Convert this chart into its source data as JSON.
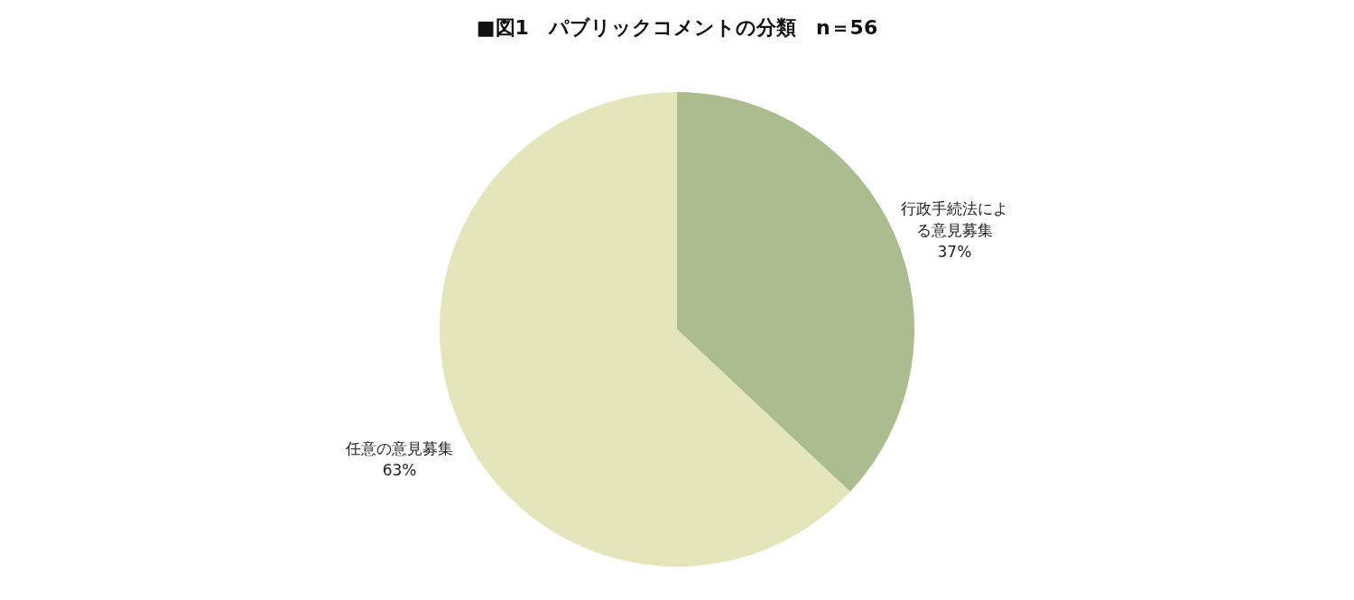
{
  "chart_data": {
    "type": "pie",
    "title": "■図1　パブリックコメントの分類　n＝56",
    "categories": [
      "行政手続法による意見募集",
      "任意の意見募集"
    ],
    "values": [
      37,
      63
    ],
    "colors": [
      "#abbc8e",
      "#e5e5bb"
    ],
    "value_labels": [
      "37%",
      "63%"
    ],
    "legend": false
  }
}
